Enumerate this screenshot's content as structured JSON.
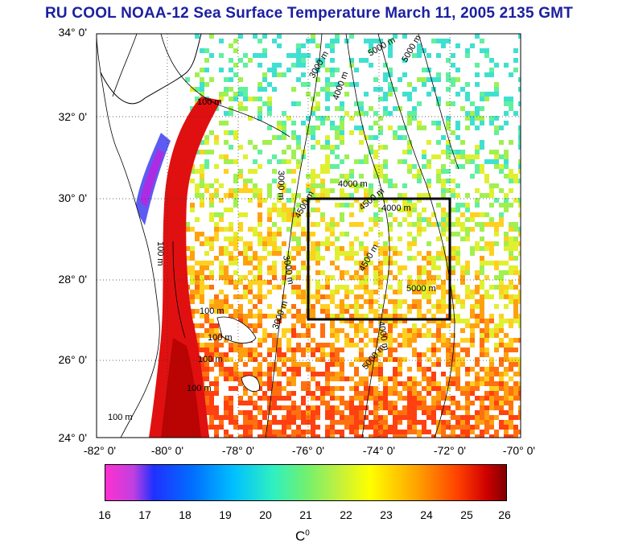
{
  "title": "RU COOL  NOAA-12 Sea Surface Temperature March 11, 2005 2135 GMT",
  "map": {
    "lat_labels": [
      "34° 0'",
      "32° 0'",
      "30° 0'",
      "28° 0'",
      "26° 0'",
      "24° 0'"
    ],
    "lon_labels": [
      "-82° 0'",
      "-80° 0'",
      "-78° 0'",
      "-76° 0'",
      "-74° 0'",
      "-72° 0'",
      "-70° 0'"
    ],
    "lat_range": [
      24,
      34
    ],
    "lon_range": [
      -82,
      -70
    ],
    "study_box": {
      "lon": [
        -76,
        -72
      ],
      "lat": [
        27,
        30
      ]
    },
    "contour_labels": [
      "100 m",
      "100 m",
      "100 m",
      "100 m",
      "100 m",
      "100 m",
      "100 m",
      "3000 m",
      "3000 m",
      "3000 m",
      "3000 m",
      "4000 m",
      "4000 m",
      "4000 m",
      "4000 m",
      "4500 m",
      "4500 m",
      "4500 m",
      "5000 m",
      "5000 m",
      "5000 m",
      "5000 m"
    ],
    "grid": "dotted",
    "land_color": "#ffffff"
  },
  "colorbar": {
    "ticks": [
      "16",
      "17",
      "18",
      "19",
      "20",
      "21",
      "22",
      "23",
      "24",
      "25",
      "26"
    ],
    "range": [
      16,
      26
    ],
    "unit_base": "C",
    "unit_sup": "0"
  }
}
